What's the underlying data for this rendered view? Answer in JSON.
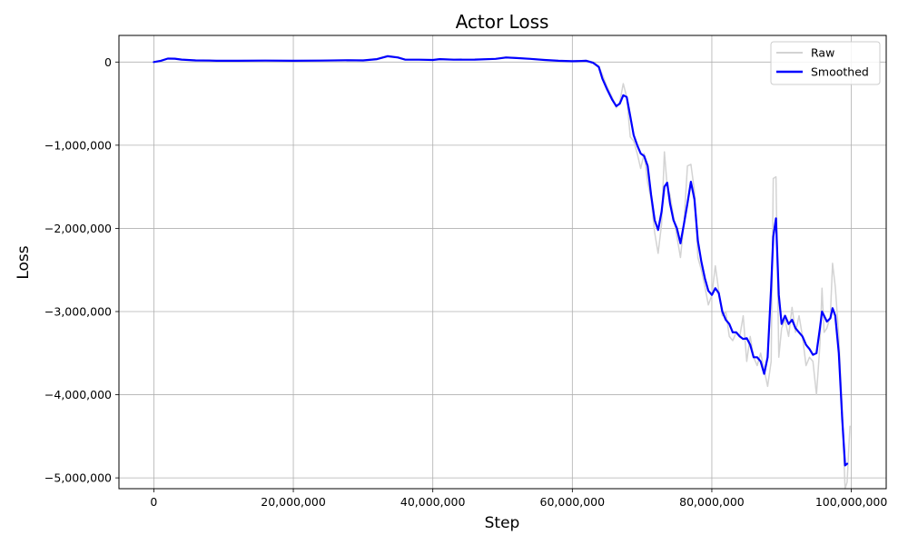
{
  "chart_data": {
    "type": "line",
    "title": "Actor Loss",
    "xlabel": "Step",
    "ylabel": "Loss",
    "xlim": [
      -5000000,
      105000000
    ],
    "ylim": [
      -5130000,
      320000
    ],
    "grid": true,
    "legend_position": "top-right",
    "x_ticks": [
      0,
      20000000,
      40000000,
      60000000,
      80000000,
      100000000
    ],
    "x_tick_labels": [
      "0",
      "20,000,000",
      "40,000,000",
      "60,000,000",
      "80,000,000",
      "100,000,000"
    ],
    "y_ticks": [
      0,
      -1000000,
      -2000000,
      -3000000,
      -4000000,
      -5000000
    ],
    "y_tick_labels": [
      "0",
      "−1,000,000",
      "−2,000,000",
      "−3,000,000",
      "−4,000,000",
      "−5,000,000"
    ],
    "series": [
      {
        "name": "Raw",
        "color": "#d3d3d3",
        "points": [
          [
            0,
            0
          ],
          [
            1000000,
            15000
          ],
          [
            2000000,
            45000
          ],
          [
            3000000,
            40000
          ],
          [
            4000000,
            30000
          ],
          [
            6000000,
            20000
          ],
          [
            8000000,
            25000
          ],
          [
            9000000,
            15000
          ],
          [
            12000000,
            15000
          ],
          [
            16000000,
            20000
          ],
          [
            20000000,
            15000
          ],
          [
            24000000,
            20000
          ],
          [
            28000000,
            25000
          ],
          [
            30000000,
            20000
          ],
          [
            32000000,
            40000
          ],
          [
            33500000,
            75000
          ],
          [
            35000000,
            60000
          ],
          [
            36000000,
            30000
          ],
          [
            38000000,
            30000
          ],
          [
            40000000,
            25000
          ],
          [
            41000000,
            40000
          ],
          [
            43000000,
            30000
          ],
          [
            46000000,
            30000
          ],
          [
            49000000,
            40000
          ],
          [
            50500000,
            60000
          ],
          [
            52000000,
            50000
          ],
          [
            54000000,
            40000
          ],
          [
            56000000,
            25000
          ],
          [
            58000000,
            15000
          ],
          [
            60000000,
            10000
          ],
          [
            61000000,
            15000
          ],
          [
            62000000,
            20000
          ],
          [
            63000000,
            0
          ],
          [
            63800000,
            -50000
          ],
          [
            64300000,
            -150000
          ],
          [
            65000000,
            -300000
          ],
          [
            65700000,
            -420000
          ],
          [
            66300000,
            -550000
          ],
          [
            66800000,
            -480000
          ],
          [
            67300000,
            -260000
          ],
          [
            67800000,
            -420000
          ],
          [
            68300000,
            -900000
          ],
          [
            68800000,
            -950000
          ],
          [
            69300000,
            -1100000
          ],
          [
            69800000,
            -1280000
          ],
          [
            70300000,
            -1100000
          ],
          [
            70800000,
            -1450000
          ],
          [
            71300000,
            -1650000
          ],
          [
            71800000,
            -2050000
          ],
          [
            72300000,
            -2300000
          ],
          [
            72800000,
            -1950000
          ],
          [
            73200000,
            -1080000
          ],
          [
            73600000,
            -1500000
          ],
          [
            74000000,
            -1600000
          ],
          [
            74500000,
            -1850000
          ],
          [
            75000000,
            -2100000
          ],
          [
            75500000,
            -2350000
          ],
          [
            76000000,
            -1950000
          ],
          [
            76500000,
            -1250000
          ],
          [
            77000000,
            -1230000
          ],
          [
            77500000,
            -1550000
          ],
          [
            78000000,
            -2350000
          ],
          [
            78500000,
            -2500000
          ],
          [
            79000000,
            -2700000
          ],
          [
            79500000,
            -2920000
          ],
          [
            80000000,
            -2800000
          ],
          [
            80500000,
            -2450000
          ],
          [
            81000000,
            -2750000
          ],
          [
            81500000,
            -3050000
          ],
          [
            82000000,
            -3000000
          ],
          [
            82500000,
            -3300000
          ],
          [
            83000000,
            -3350000
          ],
          [
            83500000,
            -3250000
          ],
          [
            84000000,
            -3300000
          ],
          [
            84500000,
            -3050000
          ],
          [
            85000000,
            -3600000
          ],
          [
            85500000,
            -3300000
          ],
          [
            86000000,
            -3550000
          ],
          [
            86500000,
            -3650000
          ],
          [
            87000000,
            -3500000
          ],
          [
            87500000,
            -3700000
          ],
          [
            88000000,
            -3900000
          ],
          [
            88500000,
            -3600000
          ],
          [
            88800000,
            -1400000
          ],
          [
            89200000,
            -1380000
          ],
          [
            89600000,
            -3550000
          ],
          [
            90000000,
            -3200000
          ],
          [
            90500000,
            -3100000
          ],
          [
            91000000,
            -3300000
          ],
          [
            91500000,
            -2950000
          ],
          [
            92000000,
            -3250000
          ],
          [
            92500000,
            -3050000
          ],
          [
            93000000,
            -3300000
          ],
          [
            93500000,
            -3650000
          ],
          [
            94000000,
            -3550000
          ],
          [
            94500000,
            -3600000
          ],
          [
            95000000,
            -4000000
          ],
          [
            95500000,
            -3400000
          ],
          [
            95800000,
            -2720000
          ],
          [
            96100000,
            -3250000
          ],
          [
            96500000,
            -3200000
          ],
          [
            97000000,
            -3050000
          ],
          [
            97300000,
            -2420000
          ],
          [
            97700000,
            -2700000
          ],
          [
            98200000,
            -3300000
          ],
          [
            98700000,
            -4200000
          ],
          [
            99100000,
            -5130000
          ],
          [
            99400000,
            -5050000
          ],
          [
            99600000,
            -4700000
          ],
          [
            99800000,
            -4380000
          ]
        ]
      },
      {
        "name": "Smoothed",
        "color": "#0000ff",
        "points": [
          [
            0,
            0
          ],
          [
            1000000,
            15000
          ],
          [
            2000000,
            42000
          ],
          [
            3000000,
            40000
          ],
          [
            4000000,
            30000
          ],
          [
            6000000,
            20000
          ],
          [
            8000000,
            18000
          ],
          [
            9000000,
            15000
          ],
          [
            12000000,
            15000
          ],
          [
            16000000,
            18000
          ],
          [
            20000000,
            15000
          ],
          [
            24000000,
            18000
          ],
          [
            28000000,
            22000
          ],
          [
            30000000,
            20000
          ],
          [
            32000000,
            35000
          ],
          [
            33500000,
            70000
          ],
          [
            35000000,
            55000
          ],
          [
            36000000,
            30000
          ],
          [
            38000000,
            28000
          ],
          [
            40000000,
            25000
          ],
          [
            41000000,
            35000
          ],
          [
            43000000,
            28000
          ],
          [
            46000000,
            30000
          ],
          [
            49000000,
            38000
          ],
          [
            50500000,
            55000
          ],
          [
            52000000,
            48000
          ],
          [
            54000000,
            38000
          ],
          [
            56000000,
            25000
          ],
          [
            58000000,
            15000
          ],
          [
            60000000,
            10000
          ],
          [
            61000000,
            12000
          ],
          [
            62000000,
            15000
          ],
          [
            63000000,
            -10000
          ],
          [
            63800000,
            -60000
          ],
          [
            64300000,
            -200000
          ],
          [
            65000000,
            -330000
          ],
          [
            65700000,
            -450000
          ],
          [
            66300000,
            -530000
          ],
          [
            66800000,
            -500000
          ],
          [
            67300000,
            -400000
          ],
          [
            67800000,
            -420000
          ],
          [
            68300000,
            -650000
          ],
          [
            68800000,
            -880000
          ],
          [
            69300000,
            -1000000
          ],
          [
            69800000,
            -1100000
          ],
          [
            70300000,
            -1130000
          ],
          [
            70800000,
            -1250000
          ],
          [
            71300000,
            -1600000
          ],
          [
            71800000,
            -1900000
          ],
          [
            72300000,
            -2020000
          ],
          [
            72800000,
            -1800000
          ],
          [
            73200000,
            -1500000
          ],
          [
            73600000,
            -1450000
          ],
          [
            74000000,
            -1700000
          ],
          [
            74500000,
            -1900000
          ],
          [
            75000000,
            -2000000
          ],
          [
            75500000,
            -2180000
          ],
          [
            76000000,
            -1950000
          ],
          [
            76500000,
            -1700000
          ],
          [
            77000000,
            -1440000
          ],
          [
            77500000,
            -1650000
          ],
          [
            78000000,
            -2150000
          ],
          [
            78500000,
            -2400000
          ],
          [
            79000000,
            -2600000
          ],
          [
            79500000,
            -2750000
          ],
          [
            80000000,
            -2800000
          ],
          [
            80500000,
            -2720000
          ],
          [
            81000000,
            -2780000
          ],
          [
            81500000,
            -3000000
          ],
          [
            82000000,
            -3100000
          ],
          [
            82500000,
            -3150000
          ],
          [
            83000000,
            -3250000
          ],
          [
            83500000,
            -3250000
          ],
          [
            84000000,
            -3300000
          ],
          [
            84500000,
            -3330000
          ],
          [
            85000000,
            -3320000
          ],
          [
            85500000,
            -3400000
          ],
          [
            86000000,
            -3550000
          ],
          [
            86500000,
            -3550000
          ],
          [
            87000000,
            -3600000
          ],
          [
            87500000,
            -3750000
          ],
          [
            88000000,
            -3550000
          ],
          [
            88500000,
            -2700000
          ],
          [
            88800000,
            -2100000
          ],
          [
            89200000,
            -1880000
          ],
          [
            89600000,
            -2800000
          ],
          [
            90000000,
            -3150000
          ],
          [
            90500000,
            -3050000
          ],
          [
            91000000,
            -3150000
          ],
          [
            91500000,
            -3100000
          ],
          [
            92000000,
            -3200000
          ],
          [
            92500000,
            -3250000
          ],
          [
            93000000,
            -3300000
          ],
          [
            93500000,
            -3400000
          ],
          [
            94000000,
            -3450000
          ],
          [
            94500000,
            -3520000
          ],
          [
            95000000,
            -3500000
          ],
          [
            95500000,
            -3200000
          ],
          [
            95800000,
            -3000000
          ],
          [
            96100000,
            -3050000
          ],
          [
            96500000,
            -3120000
          ],
          [
            97000000,
            -3080000
          ],
          [
            97300000,
            -2960000
          ],
          [
            97700000,
            -3050000
          ],
          [
            98200000,
            -3500000
          ],
          [
            98700000,
            -4300000
          ],
          [
            99100000,
            -4850000
          ],
          [
            99400000,
            -4830000
          ]
        ]
      }
    ]
  }
}
